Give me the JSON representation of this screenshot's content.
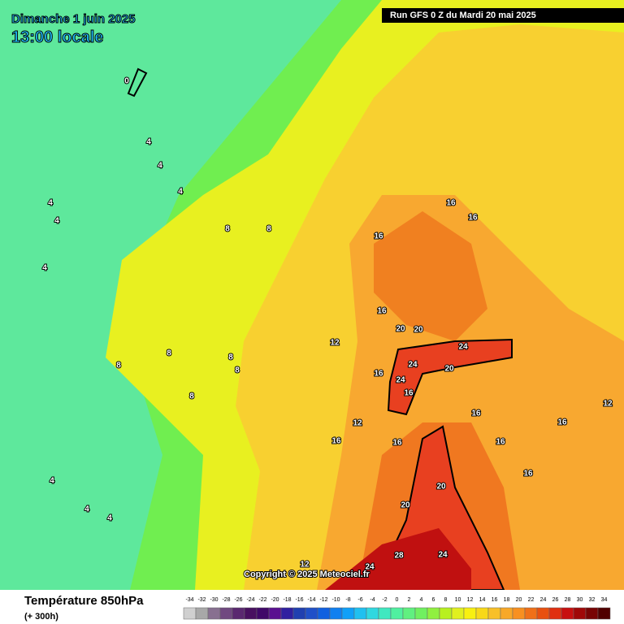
{
  "header": {
    "date": "Dimanche 1 juin 2025",
    "time": "13:00 locale",
    "run": "Run GFS 0 Z du Mardi 20 mai 2025"
  },
  "copyright": "Copyright © 2025 Meteociel.fr",
  "footer": {
    "title": "Température 850hPa",
    "lead": "(+ 300h)"
  },
  "scale": {
    "labels": [
      -34,
      -32,
      -30,
      -28,
      -26,
      -24,
      -22,
      -20,
      -18,
      -16,
      -14,
      -12,
      -10,
      -8,
      -6,
      -4,
      -2,
      0,
      2,
      4,
      6,
      8,
      10,
      12,
      14,
      16,
      18,
      20,
      22,
      24,
      26,
      28,
      30,
      32,
      34
    ],
    "colors": [
      "#d0d0d0",
      "#a8a8a8",
      "#887090",
      "#704880",
      "#5a2870",
      "#481060",
      "#400868",
      "#5a1090",
      "#3020a0",
      "#2040b0",
      "#2050c8",
      "#1060e0",
      "#1080f0",
      "#10a0f8",
      "#20c0f0",
      "#30d8e0",
      "#40e8c0",
      "#50f0a0",
      "#60f080",
      "#70f060",
      "#90f040",
      "#b8f020",
      "#e0f020",
      "#f8f010",
      "#f8d818",
      "#f8c028",
      "#f8a828",
      "#f89020",
      "#f07018",
      "#e85010",
      "#e03010",
      "#c81010",
      "#a00808",
      "#780404",
      "#500000"
    ]
  },
  "contour_labels": [
    0,
    4,
    4,
    4,
    4,
    4,
    4,
    4,
    4,
    4,
    8,
    8,
    8,
    8,
    8,
    8,
    8,
    12,
    12,
    12,
    12,
    16,
    16,
    16,
    16,
    16,
    16,
    16,
    16,
    16,
    16,
    16,
    16,
    20,
    20,
    20,
    20,
    20,
    24,
    24,
    24,
    24,
    24,
    28
  ]
}
